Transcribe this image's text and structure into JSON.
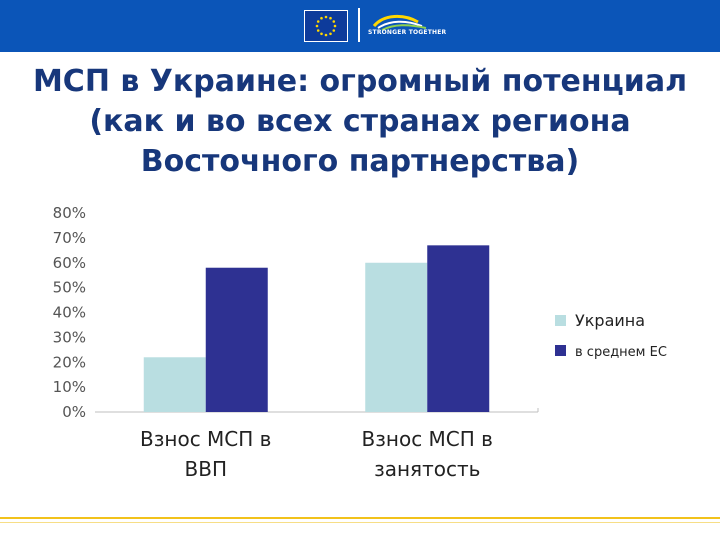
{
  "header": {
    "logo_text": "STRONGER TOGETHER",
    "colors": {
      "bar": "#0b55b8",
      "eu_flag": "#0d3b9b",
      "stars": "#ffd700"
    }
  },
  "title": {
    "line1": "МСП в Украине: огромный потенциал",
    "line2": "(как и во всех странах региона",
    "line3": "Восточного партнерства)"
  },
  "chart_data": {
    "type": "bar",
    "categories": [
      "Взнос МСП в ВВП",
      "Взнос МСП в занятость"
    ],
    "category_lines": [
      [
        "Взнос МСП в",
        "ВВП"
      ],
      [
        "Взнос МСП в",
        "занятость"
      ]
    ],
    "series": [
      {
        "name": "Украина",
        "values": [
          0.22,
          0.6
        ],
        "color": "#b9dee1"
      },
      {
        "name": "в среднем ЕС",
        "values": [
          0.58,
          0.67
        ],
        "color": "#2e3192"
      }
    ],
    "yticks": [
      "0%",
      "10%",
      "20%",
      "30%",
      "40%",
      "50%",
      "60%",
      "70%",
      "80%"
    ],
    "ylim": [
      0,
      0.8
    ],
    "grid": false,
    "legend_position": "right"
  }
}
